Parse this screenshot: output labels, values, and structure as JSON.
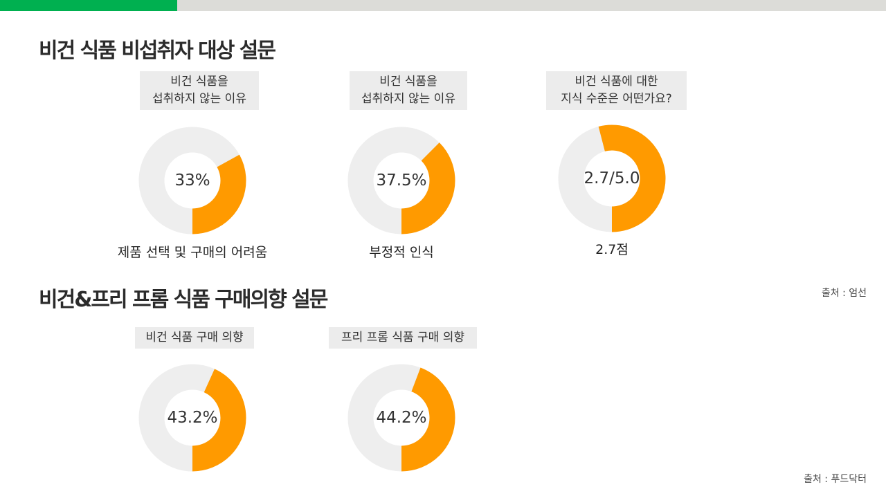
{
  "colors": {
    "accent": "#00b050",
    "topbar": "#dcdcd8",
    "donut_fill": "#ff9a00",
    "donut_track": "#eeeeee"
  },
  "section1": {
    "title": "비건 식품 비섭취자 대상 설문",
    "source": "출처 : 엄선"
  },
  "section2": {
    "title": "비건&프리 프롬 식품 구매의향 설문",
    "source": "출처 : 푸드닥터"
  },
  "chart_data": [
    {
      "type": "pie",
      "variant": "donut",
      "label_lines": [
        "비건 식품을",
        "섭취하지 않는 이유"
      ],
      "value": 33,
      "max": 100,
      "value_label": "33%",
      "caption": "제품 선택 및 구매의 어려움"
    },
    {
      "type": "pie",
      "variant": "donut",
      "label_lines": [
        "비건 식품을",
        "섭취하지 않는 이유"
      ],
      "value": 37.5,
      "max": 100,
      "value_label": "37.5%",
      "caption": "부정적 인식"
    },
    {
      "type": "pie",
      "variant": "donut",
      "label_lines": [
        "비건 식품에 대한",
        "지식 수준은 어떤가요?"
      ],
      "value": 2.7,
      "max": 5.0,
      "value_label": "2.7/5.0",
      "caption": "2.7점"
    },
    {
      "type": "pie",
      "variant": "donut",
      "label_lines": [
        "비건 식품 구매 의향"
      ],
      "value": 43.2,
      "max": 100,
      "value_label": "43.2%",
      "caption": ""
    },
    {
      "type": "pie",
      "variant": "donut",
      "label_lines": [
        "프리 프롬 식품 구매 의향"
      ],
      "value": 44.2,
      "max": 100,
      "value_label": "44.2%",
      "caption": ""
    }
  ]
}
